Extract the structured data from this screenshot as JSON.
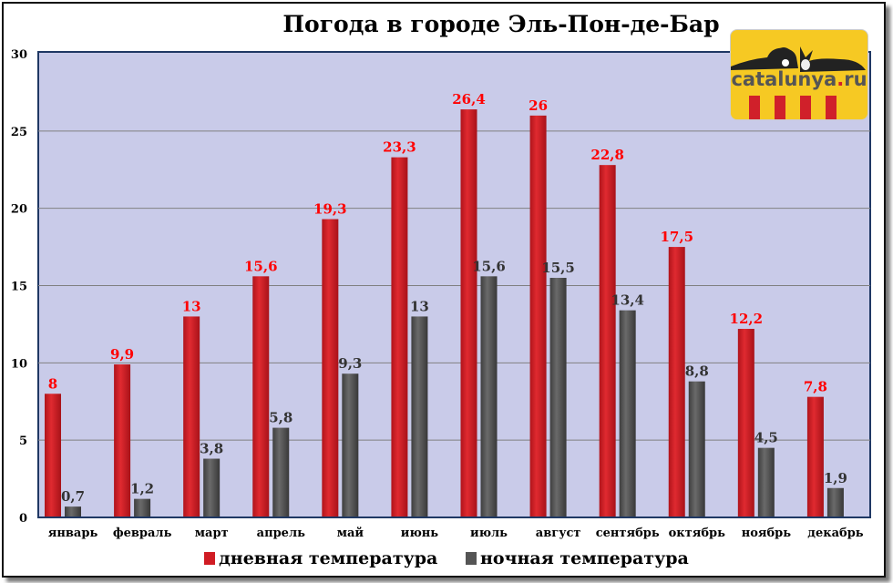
{
  "chart_data": {
    "type": "bar",
    "title": "Погода в городе Эль-Пон-де-Бар",
    "categories": [
      "январь",
      "февраль",
      "март",
      "апрель",
      "май",
      "июнь",
      "июль",
      "август",
      "сентябрь",
      "октябрь",
      "ноябрь",
      "декабрь"
    ],
    "series": [
      {
        "name": "дневная температура",
        "color": "#d01c24",
        "values": [
          8,
          9.9,
          13,
          15.6,
          19.3,
          23.3,
          26.4,
          26,
          22.8,
          17.5,
          12.2,
          7.8
        ],
        "labels": [
          "8",
          "9,9",
          "13",
          "15,6",
          "19,3",
          "23,3",
          "26,4",
          "26",
          "22,8",
          "17,5",
          "12,2",
          "7,8"
        ],
        "label_color": "#ff0000"
      },
      {
        "name": "ночная температура",
        "color": "#555555",
        "values": [
          0.7,
          1.2,
          3.8,
          5.8,
          9.3,
          13,
          15.6,
          15.5,
          13.4,
          8.8,
          4.5,
          1.9
        ],
        "labels": [
          "0,7",
          "1,2",
          "3,8",
          "5,8",
          "9,3",
          "13",
          "15,6",
          "15,5",
          "13,4",
          "8,8",
          "4,5",
          "1,9"
        ],
        "label_color": "#333333"
      }
    ],
    "ylim": [
      0,
      30
    ],
    "yticks": [
      "0",
      "5",
      "10",
      "15",
      "20",
      "25",
      "30"
    ],
    "grid": true,
    "legend": "bottom",
    "plot_background": "#c9cbe9"
  },
  "logo": {
    "text_main": "catalunya",
    "text_dot": ".",
    "text_tld": "ru"
  }
}
